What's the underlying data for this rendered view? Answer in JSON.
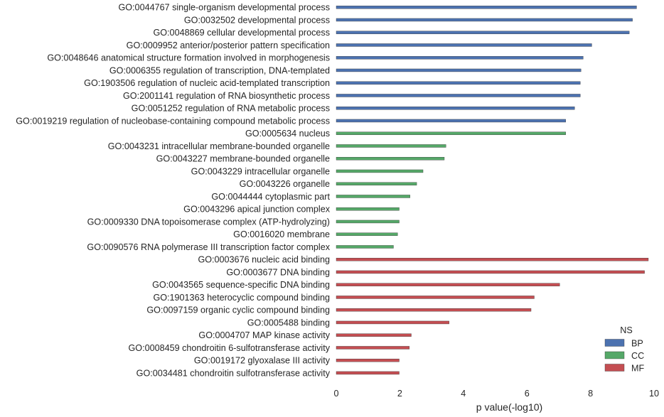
{
  "chart_data": {
    "type": "bar",
    "orientation": "horizontal",
    "xlabel": "p value(-log10)",
    "ylabel": "",
    "xlim": [
      0,
      10
    ],
    "x_ticks": [
      "0",
      "2",
      "4",
      "6",
      "8",
      "10"
    ],
    "grid": false,
    "legend": {
      "title": "NS",
      "position": "bottom-right",
      "entries": [
        {
          "name": "BP",
          "color": "#4c72b0"
        },
        {
          "name": "CC",
          "color": "#55a868"
        },
        {
          "name": "MF",
          "color": "#c44e52"
        }
      ]
    },
    "categories": [
      "GO:0044767 single-organism developmental process",
      "GO:0032502 developmental process",
      "GO:0048869 cellular developmental process",
      "GO:0009952 anterior/posterior pattern specification",
      "GO:0048646 anatomical structure formation involved in morphogenesis",
      "GO:0006355 regulation of transcription, DNA-templated",
      "GO:1903506 regulation of nucleic acid-templated transcription",
      "GO:2001141 regulation of RNA biosynthetic process",
      "GO:0051252 regulation of RNA metabolic process",
      "GO:0019219 regulation of nucleobase-containing compound metabolic process",
      "GO:0005634 nucleus",
      "GO:0043231 intracellular membrane-bounded organelle",
      "GO:0043227 membrane-bounded organelle",
      "GO:0043229 intracellular organelle",
      "GO:0043226 organelle",
      "GO:0044444 cytoplasmic part",
      "GO:0043296 apical junction complex",
      "GO:0009330 DNA topoisomerase complex (ATP-hydrolyzing)",
      "GO:0016020 membrane",
      "GO:0090576 RNA polymerase III transcription factor complex",
      "GO:0003676 nucleic acid binding",
      "GO:0003677 DNA binding",
      "GO:0043565 sequence-specific DNA binding",
      "GO:1901363 heterocyclic compound binding",
      "GO:0097159 organic cyclic compound binding",
      "GO:0005488 binding",
      "GO:0004707 MAP kinase activity",
      "GO:0008459 chondroitin 6-sulfotransferase activity",
      "GO:0019172 glyoxalase III activity",
      "GO:0034481 chondroitin sulfotransferase activity"
    ],
    "series": [
      {
        "name": "BP",
        "color": "#4c72b0",
        "values": [
          9.45,
          9.32,
          9.22,
          8.04,
          7.77,
          7.7,
          7.68,
          7.68,
          7.5,
          7.22,
          null,
          null,
          null,
          null,
          null,
          null,
          null,
          null,
          null,
          null,
          null,
          null,
          null,
          null,
          null,
          null,
          null,
          null,
          null,
          null
        ]
      },
      {
        "name": "CC",
        "color": "#55a868",
        "values": [
          null,
          null,
          null,
          null,
          null,
          null,
          null,
          null,
          null,
          null,
          7.22,
          3.45,
          3.4,
          2.73,
          2.53,
          2.32,
          1.98,
          1.98,
          1.93,
          1.8,
          null,
          null,
          null,
          null,
          null,
          null,
          null,
          null,
          null,
          null
        ]
      },
      {
        "name": "MF",
        "color": "#c44e52",
        "values": [
          null,
          null,
          null,
          null,
          null,
          null,
          null,
          null,
          null,
          null,
          null,
          null,
          null,
          null,
          null,
          null,
          null,
          null,
          null,
          null,
          9.82,
          9.7,
          7.03,
          6.23,
          6.13,
          3.55,
          2.36,
          2.3,
          1.98,
          1.98
        ]
      }
    ]
  }
}
